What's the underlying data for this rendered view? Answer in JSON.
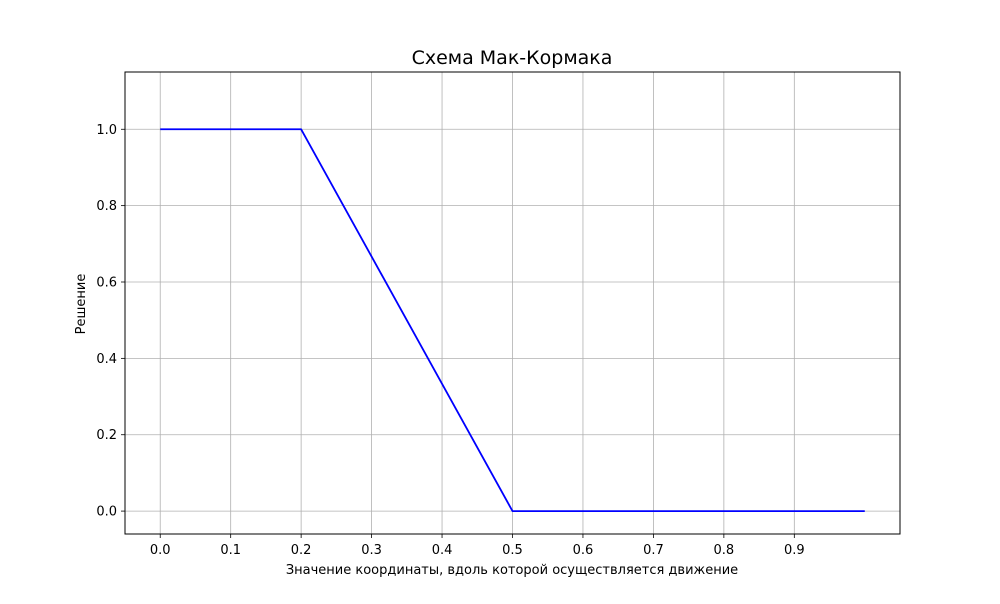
{
  "chart_data": {
    "type": "line",
    "title": "Схема Мак-Кормака",
    "xlabel": "Значение координаты, вдоль которой осуществляется движение",
    "ylabel": "Решение",
    "xlim": [
      -0.05,
      1.05
    ],
    "ylim": [
      -0.06,
      1.15
    ],
    "x_ticks": [
      0.0,
      0.1,
      0.2,
      0.3,
      0.4,
      0.5,
      0.6,
      0.7,
      0.8,
      0.9
    ],
    "x_tick_labels": [
      "0.0",
      "0.1",
      "0.2",
      "0.3",
      "0.4",
      "0.5",
      "0.6",
      "0.7",
      "0.8",
      "0.9"
    ],
    "y_ticks": [
      0.0,
      0.2,
      0.4,
      0.6,
      0.8,
      1.0
    ],
    "y_tick_labels": [
      "0.0",
      "0.2",
      "0.4",
      "0.6",
      "0.8",
      "1.0"
    ],
    "grid": true,
    "line_color": "#0000ff",
    "grid_color": "#b0b0b0",
    "series": [
      {
        "x": [
          0.0,
          0.2,
          0.5,
          1.0
        ],
        "y": [
          1.0,
          1.0,
          0.0,
          0.0
        ]
      }
    ]
  }
}
